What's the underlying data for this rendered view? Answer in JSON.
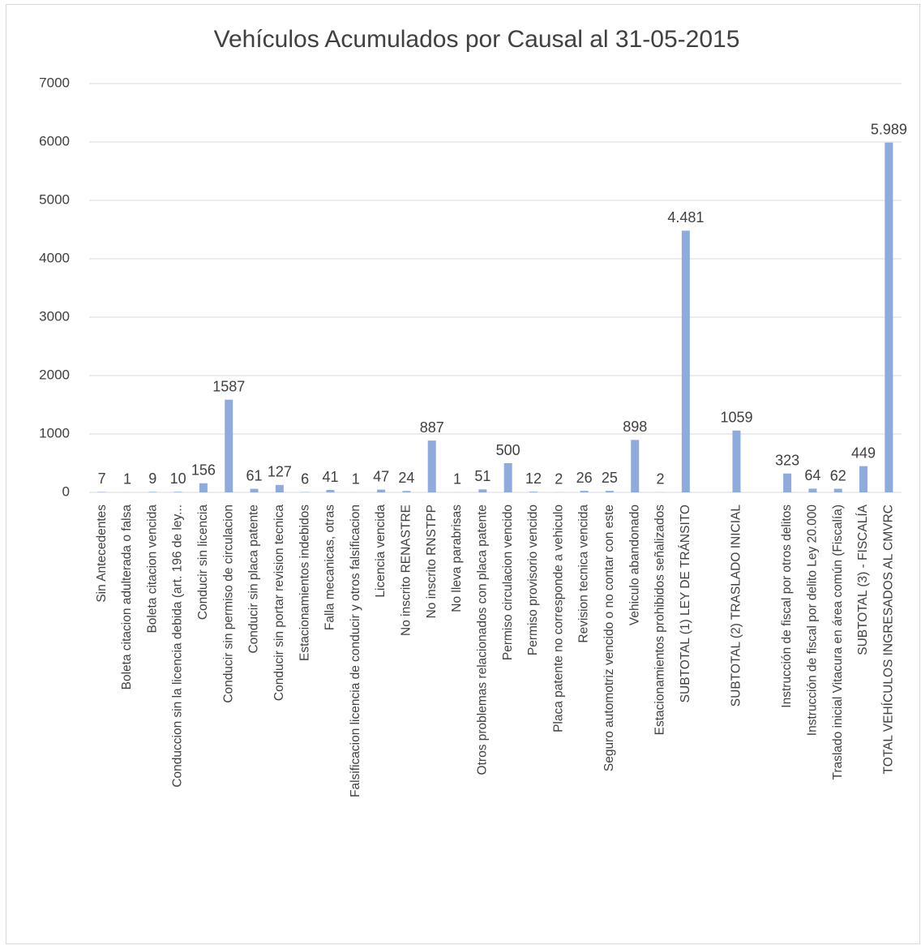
{
  "chart_data": {
    "type": "bar",
    "title": "Vehículos Acumulados por Causal al 31-05-2015",
    "categories": [
      "Sin Antecedentes",
      "Boleta citacion adulterada o falsa",
      "Boleta citacion vencida",
      "Conduccion sin la licencia debida (art. 196 de ley...",
      "Conducir sin licencia",
      "Conducir sin permiso de circulacion",
      "Conducir sin placa patente",
      "Conducir sin portar revision tecnica",
      "Estacionamientos indebidos",
      "Falla mecanicas, otras",
      "Falsificacion licencia de conducir y otros falsificacion",
      "Licencia vencida",
      "No inscrito RENASTRE",
      "No inscrito RNSTPP",
      "No lleva parabrisas",
      "Otros problemas relacionados con placa patente",
      "Permiso circulacion vencido",
      "Permiso provisorio vencido",
      "Placa patente no corresponde a vehiculo",
      "Revision tecnica vencida",
      "Seguro automotriz vencido o no contar con este",
      "Vehiculo abandonado",
      "Estacionamientos prohibidos señalizados",
      "SUBTOTAL (1)  LEY DE TRÁNSITO",
      null,
      "SUBTOTAL (2) TRASLADO INICIAL",
      null,
      "Instrucción de fiscal por otros delitos",
      "Instrucción de fiscal por delito Ley 20.000",
      "Traslado inicial Vitacura en área común (Fiscalía)",
      "SUBTOTAL (3) - FISCALÍA",
      "TOTAL VEHÍCULOS INGRESADOS AL CMVRC"
    ],
    "values": [
      7,
      1,
      9,
      10,
      156,
      1587,
      61,
      127,
      6,
      41,
      1,
      47,
      24,
      887,
      1,
      51,
      500,
      12,
      2,
      26,
      25,
      898,
      2,
      4481,
      null,
      1059,
      null,
      323,
      64,
      62,
      449,
      5989
    ],
    "value_labels": [
      "7",
      "1",
      "9",
      "10",
      "156",
      "1587",
      "61",
      "127",
      "6",
      "41",
      "1",
      "47",
      "24",
      "887",
      "1",
      "51",
      "500",
      "12",
      "2",
      "26",
      "25",
      "898",
      "2",
      "4.481",
      null,
      "1059",
      null,
      "323",
      "64",
      "62",
      "449",
      "5.989"
    ],
    "color": "#8faadc",
    "ylim": [
      0,
      7000
    ],
    "yticks": [
      0,
      1000,
      2000,
      3000,
      4000,
      5000,
      6000,
      7000
    ],
    "grid": true
  }
}
